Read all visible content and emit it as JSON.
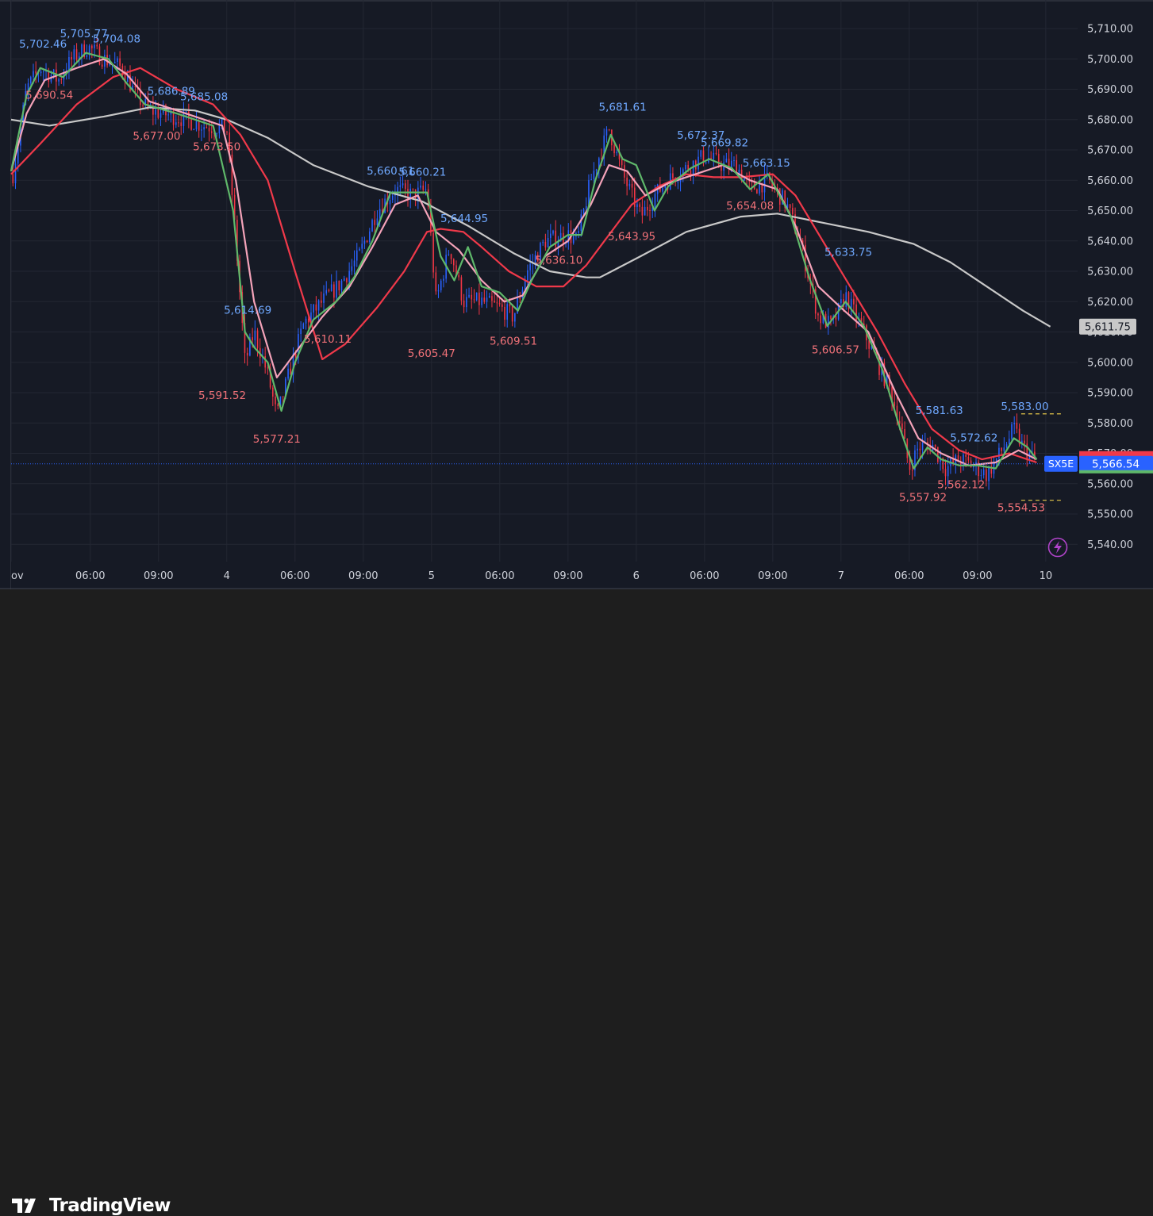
{
  "brand": {
    "name": "TradingView",
    "logo_icon": "tradingview-logo-icon"
  },
  "colors": {
    "background": "#161a25",
    "grid": "#232733",
    "up_candle": "#2962ff",
    "down_candle": "#f23645",
    "ma_fast": "#5fb86a",
    "ma_pink": "#f4a3b9",
    "ma_red": "#f0394a",
    "ma_slow": "#c8c8c8",
    "high_label": "#6fa8ff",
    "low_label": "#f07178",
    "axis_text": "#d1d4dc"
  },
  "chart_data": {
    "type": "line",
    "symbol": "SX5E",
    "last_price": 5566.54,
    "last_price_label": "5,566.54",
    "symbol_tag": "SX5E",
    "ma_value_label": "5,611.75",
    "ma_value": 5611.75,
    "ylim": [
      5533,
      5716
    ],
    "y_ticks": [
      5540,
      5550,
      5560,
      5570,
      5580,
      5590,
      5600,
      5610,
      5620,
      5630,
      5640,
      5650,
      5660,
      5670,
      5680,
      5690,
      5700,
      5710
    ],
    "y_tick_labels": [
      "5,540.00",
      "5,550.00",
      "5,560.00",
      "5,570.00",
      "5,580.00",
      "5,590.00",
      "5,600.00",
      "5,610.00",
      "5,620.00",
      "5,630.00",
      "5,640.00",
      "5,650.00",
      "5,660.00",
      "5,670.00",
      "5,680.00",
      "5,690.00",
      "5,700.00",
      "5,710.00"
    ],
    "x_range": [
      -1.62,
      10.1
    ],
    "x_ticks": [
      {
        "x": -1.62,
        "label": "ov"
      },
      {
        "x": -0.75,
        "label": "06:00"
      },
      {
        "x": 0.0,
        "label": "09:00"
      },
      {
        "x": 0.75,
        "label": "4"
      },
      {
        "x": 1.5,
        "label": "06:00"
      },
      {
        "x": 2.25,
        "label": "09:00"
      },
      {
        "x": 3.0,
        "label": "5"
      },
      {
        "x": 3.75,
        "label": "06:00"
      },
      {
        "x": 4.5,
        "label": "09:00"
      },
      {
        "x": 5.25,
        "label": "6"
      },
      {
        "x": 6.0,
        "label": "06:00"
      },
      {
        "x": 6.75,
        "label": "09:00"
      },
      {
        "x": 7.5,
        "label": "7"
      },
      {
        "x": 8.25,
        "label": "06:00"
      },
      {
        "x": 9.0,
        "label": "09:00"
      },
      {
        "x": 9.75,
        "label": "10"
      }
    ],
    "price_anchors": [
      [
        -1.6,
        5662
      ],
      [
        -1.45,
        5690
      ],
      [
        -1.3,
        5697
      ],
      [
        -1.1,
        5693
      ],
      [
        -0.95,
        5700
      ],
      [
        -0.78,
        5704
      ],
      [
        -0.6,
        5700
      ],
      [
        -0.4,
        5697
      ],
      [
        -0.25,
        5688
      ],
      [
        -0.1,
        5683
      ],
      [
        0.05,
        5682
      ],
      [
        0.3,
        5680
      ],
      [
        0.5,
        5678
      ],
      [
        0.75,
        5677
      ],
      [
        0.85,
        5640
      ],
      [
        0.95,
        5600
      ],
      [
        1.05,
        5610
      ],
      [
        1.2,
        5596
      ],
      [
        1.3,
        5582
      ],
      [
        1.45,
        5598
      ],
      [
        1.6,
        5613
      ],
      [
        1.8,
        5620
      ],
      [
        2.0,
        5626
      ],
      [
        2.2,
        5635
      ],
      [
        2.4,
        5650
      ],
      [
        2.6,
        5657
      ],
      [
        2.8,
        5655
      ],
      [
        2.95,
        5657
      ],
      [
        3.05,
        5620
      ],
      [
        3.2,
        5638
      ],
      [
        3.35,
        5620
      ],
      [
        3.55,
        5620
      ],
      [
        3.75,
        5618
      ],
      [
        3.9,
        5615
      ],
      [
        4.05,
        5630
      ],
      [
        4.25,
        5640
      ],
      [
        4.5,
        5642
      ],
      [
        4.6,
        5640
      ],
      [
        4.75,
        5660
      ],
      [
        4.95,
        5677
      ],
      [
        5.1,
        5662
      ],
      [
        5.3,
        5648
      ],
      [
        5.45,
        5655
      ],
      [
        5.6,
        5660
      ],
      [
        5.8,
        5664
      ],
      [
        6.0,
        5668
      ],
      [
        6.2,
        5665
      ],
      [
        6.35,
        5665
      ],
      [
        6.5,
        5657
      ],
      [
        6.7,
        5660
      ],
      [
        6.9,
        5652
      ],
      [
        7.05,
        5640
      ],
      [
        7.25,
        5615
      ],
      [
        7.4,
        5612
      ],
      [
        7.55,
        5622
      ],
      [
        7.75,
        5610
      ],
      [
        7.9,
        5600
      ],
      [
        8.05,
        5590
      ],
      [
        8.15,
        5580
      ],
      [
        8.25,
        5565
      ],
      [
        8.35,
        5572
      ],
      [
        8.5,
        5573
      ],
      [
        8.65,
        5565
      ],
      [
        8.8,
        5568
      ],
      [
        8.95,
        5566
      ],
      [
        9.1,
        5563
      ],
      [
        9.25,
        5570
      ],
      [
        9.4,
        5578
      ],
      [
        9.5,
        5572
      ],
      [
        9.65,
        5567
      ]
    ],
    "series": [
      {
        "color": "#c8c8c8",
        "values": [
          [
            -1.62,
            5680
          ],
          [
            -1.2,
            5678
          ],
          [
            -0.6,
            5681
          ],
          [
            -0.1,
            5684
          ],
          [
            0.4,
            5683
          ],
          [
            0.75,
            5680
          ],
          [
            1.2,
            5674
          ],
          [
            1.7,
            5665
          ],
          [
            2.3,
            5658
          ],
          [
            2.9,
            5653
          ],
          [
            3.4,
            5645
          ],
          [
            3.9,
            5636
          ],
          [
            4.3,
            5630
          ],
          [
            4.7,
            5628
          ],
          [
            4.85,
            5628
          ],
          [
            5.3,
            5635
          ],
          [
            5.8,
            5643
          ],
          [
            6.4,
            5648
          ],
          [
            6.8,
            5649
          ],
          [
            7.3,
            5646
          ],
          [
            7.8,
            5643
          ],
          [
            8.3,
            5639
          ],
          [
            8.7,
            5633
          ],
          [
            9.1,
            5625
          ],
          [
            9.5,
            5617
          ],
          [
            9.8,
            5611.75
          ]
        ]
      },
      {
        "color": "#f0394a",
        "values": [
          [
            -1.62,
            5662
          ],
          [
            -1.3,
            5672
          ],
          [
            -0.9,
            5685
          ],
          [
            -0.5,
            5694
          ],
          [
            -0.2,
            5697
          ],
          [
            0.2,
            5690
          ],
          [
            0.6,
            5685
          ],
          [
            0.9,
            5675
          ],
          [
            1.2,
            5660
          ],
          [
            1.5,
            5630
          ],
          [
            1.8,
            5601
          ],
          [
            2.05,
            5606
          ],
          [
            2.4,
            5618
          ],
          [
            2.7,
            5630
          ],
          [
            2.95,
            5643
          ],
          [
            3.1,
            5644
          ],
          [
            3.35,
            5643
          ],
          [
            3.55,
            5638
          ],
          [
            3.85,
            5630
          ],
          [
            4.15,
            5625
          ],
          [
            4.45,
            5625
          ],
          [
            4.7,
            5632
          ],
          [
            4.95,
            5642
          ],
          [
            5.2,
            5652
          ],
          [
            5.5,
            5658
          ],
          [
            5.8,
            5662
          ],
          [
            6.1,
            5661
          ],
          [
            6.4,
            5661
          ],
          [
            6.75,
            5662
          ],
          [
            7.0,
            5655
          ],
          [
            7.3,
            5640
          ],
          [
            7.6,
            5625
          ],
          [
            7.9,
            5610
          ],
          [
            8.2,
            5593
          ],
          [
            8.5,
            5578
          ],
          [
            8.8,
            5571
          ],
          [
            9.05,
            5568
          ],
          [
            9.35,
            5570
          ],
          [
            9.65,
            5567
          ]
        ]
      },
      {
        "color": "#f4a3b9",
        "values": [
          [
            -1.62,
            5663
          ],
          [
            -1.45,
            5682
          ],
          [
            -1.25,
            5693
          ],
          [
            -0.9,
            5697
          ],
          [
            -0.6,
            5700
          ],
          [
            -0.35,
            5695
          ],
          [
            -0.1,
            5686
          ],
          [
            0.3,
            5682
          ],
          [
            0.7,
            5678
          ],
          [
            0.85,
            5660
          ],
          [
            1.05,
            5620
          ],
          [
            1.3,
            5595
          ],
          [
            1.55,
            5605
          ],
          [
            1.8,
            5615
          ],
          [
            2.1,
            5625
          ],
          [
            2.35,
            5638
          ],
          [
            2.6,
            5652
          ],
          [
            2.85,
            5655
          ],
          [
            3.05,
            5643
          ],
          [
            3.3,
            5637
          ],
          [
            3.55,
            5627
          ],
          [
            3.8,
            5620
          ],
          [
            4.0,
            5622
          ],
          [
            4.25,
            5635
          ],
          [
            4.5,
            5640
          ],
          [
            4.75,
            5652
          ],
          [
            4.95,
            5665
          ],
          [
            5.15,
            5663
          ],
          [
            5.35,
            5655
          ],
          [
            5.6,
            5659
          ],
          [
            5.9,
            5662
          ],
          [
            6.2,
            5665
          ],
          [
            6.5,
            5660
          ],
          [
            6.8,
            5657
          ],
          [
            7.0,
            5645
          ],
          [
            7.25,
            5625
          ],
          [
            7.5,
            5618
          ],
          [
            7.8,
            5610
          ],
          [
            8.1,
            5590
          ],
          [
            8.35,
            5575
          ],
          [
            8.6,
            5570
          ],
          [
            8.9,
            5566
          ],
          [
            9.2,
            5567
          ],
          [
            9.45,
            5571
          ],
          [
            9.65,
            5568
          ]
        ]
      },
      {
        "color": "#5fb86a",
        "values": [
          [
            -1.62,
            5663
          ],
          [
            -1.45,
            5688
          ],
          [
            -1.3,
            5697
          ],
          [
            -1.05,
            5694
          ],
          [
            -0.8,
            5702
          ],
          [
            -0.55,
            5700
          ],
          [
            -0.35,
            5692
          ],
          [
            -0.15,
            5685
          ],
          [
            0.2,
            5682
          ],
          [
            0.6,
            5678
          ],
          [
            0.82,
            5650
          ],
          [
            0.95,
            5610
          ],
          [
            1.05,
            5605
          ],
          [
            1.2,
            5600
          ],
          [
            1.35,
            5584
          ],
          [
            1.5,
            5600
          ],
          [
            1.7,
            5614
          ],
          [
            1.95,
            5620
          ],
          [
            2.15,
            5628
          ],
          [
            2.35,
            5640
          ],
          [
            2.55,
            5656
          ],
          [
            2.75,
            5656
          ],
          [
            2.95,
            5656
          ],
          [
            3.1,
            5635
          ],
          [
            3.25,
            5627
          ],
          [
            3.4,
            5638
          ],
          [
            3.55,
            5625
          ],
          [
            3.75,
            5623
          ],
          [
            3.95,
            5617
          ],
          [
            4.1,
            5627
          ],
          [
            4.3,
            5638
          ],
          [
            4.5,
            5642
          ],
          [
            4.65,
            5642
          ],
          [
            4.8,
            5660
          ],
          [
            4.97,
            5675
          ],
          [
            5.1,
            5667
          ],
          [
            5.25,
            5665
          ],
          [
            5.45,
            5650
          ],
          [
            5.6,
            5658
          ],
          [
            5.85,
            5664
          ],
          [
            6.05,
            5667
          ],
          [
            6.3,
            5664
          ],
          [
            6.5,
            5657
          ],
          [
            6.7,
            5662
          ],
          [
            6.95,
            5648
          ],
          [
            7.15,
            5628
          ],
          [
            7.35,
            5612
          ],
          [
            7.55,
            5620
          ],
          [
            7.75,
            5612
          ],
          [
            7.95,
            5598
          ],
          [
            8.15,
            5578
          ],
          [
            8.3,
            5565
          ],
          [
            8.45,
            5572
          ],
          [
            8.6,
            5568
          ],
          [
            8.8,
            5566
          ],
          [
            9.0,
            5566
          ],
          [
            9.2,
            5565
          ],
          [
            9.4,
            5575
          ],
          [
            9.55,
            5572
          ],
          [
            9.65,
            5568
          ]
        ]
      }
    ],
    "annotations": [
      {
        "x": -1.27,
        "y": 5702.46,
        "label": "5,702.46",
        "kind": "high"
      },
      {
        "x": -0.82,
        "y": 5705.77,
        "label": "5,705.77",
        "kind": "high"
      },
      {
        "x": -0.46,
        "y": 5704.08,
        "label": "5,704.08",
        "kind": "high"
      },
      {
        "x": -1.2,
        "y": 5690.54,
        "label": "5,690.54",
        "kind": "low"
      },
      {
        "x": 0.14,
        "y": 5686.89,
        "label": "5,686.89",
        "kind": "high"
      },
      {
        "x": 0.5,
        "y": 5685.08,
        "label": "5,685.08",
        "kind": "high"
      },
      {
        "x": -0.02,
        "y": 5677.0,
        "label": "5,677.00",
        "kind": "low"
      },
      {
        "x": 0.64,
        "y": 5673.5,
        "label": "5,673.50",
        "kind": "low"
      },
      {
        "x": 0.98,
        "y": 5614.69,
        "label": "5,614.69",
        "kind": "high"
      },
      {
        "x": 0.7,
        "y": 5591.52,
        "label": "5,591.52",
        "kind": "low"
      },
      {
        "x": 1.3,
        "y": 5577.21,
        "label": "5,577.21",
        "kind": "low"
      },
      {
        "x": 1.86,
        "y": 5610.11,
        "label": "5,610.11",
        "kind": "low"
      },
      {
        "x": 2.55,
        "y": 5660.61,
        "label": "5,660.61",
        "kind": "high"
      },
      {
        "x": 2.9,
        "y": 5660.21,
        "label": "5,660.21",
        "kind": "high"
      },
      {
        "x": 3.36,
        "y": 5644.95,
        "label": "5,644.95",
        "kind": "high"
      },
      {
        "x": 3.0,
        "y": 5605.47,
        "label": "5,605.47",
        "kind": "low"
      },
      {
        "x": 3.9,
        "y": 5609.51,
        "label": "5,609.51",
        "kind": "low"
      },
      {
        "x": 4.4,
        "y": 5636.1,
        "label": "5,636.10",
        "kind": "low"
      },
      {
        "x": 5.1,
        "y": 5681.61,
        "label": "5,681.61",
        "kind": "high"
      },
      {
        "x": 5.2,
        "y": 5643.95,
        "label": "5,643.95",
        "kind": "low"
      },
      {
        "x": 5.96,
        "y": 5672.37,
        "label": "5,672.37",
        "kind": "high"
      },
      {
        "x": 6.22,
        "y": 5669.82,
        "label": "5,669.82",
        "kind": "high"
      },
      {
        "x": 6.68,
        "y": 5663.15,
        "label": "5,663.15",
        "kind": "high"
      },
      {
        "x": 6.5,
        "y": 5654.08,
        "label": "5,654.08",
        "kind": "low"
      },
      {
        "x": 7.58,
        "y": 5633.75,
        "label": "5,633.75",
        "kind": "high"
      },
      {
        "x": 7.44,
        "y": 5606.57,
        "label": "5,606.57",
        "kind": "low"
      },
      {
        "x": 8.58,
        "y": 5581.63,
        "label": "5,581.63",
        "kind": "high"
      },
      {
        "x": 8.96,
        "y": 5572.62,
        "label": "5,572.62",
        "kind": "high"
      },
      {
        "x": 8.4,
        "y": 5557.92,
        "label": "5,557.92",
        "kind": "low"
      },
      {
        "x": 8.82,
        "y": 5562.12,
        "label": "5,562.12",
        "kind": "low"
      },
      {
        "x": 9.52,
        "y": 5583.0,
        "label": "5,583.00",
        "kind": "high"
      },
      {
        "x": 9.48,
        "y": 5554.53,
        "label": "5,554.53",
        "kind": "low"
      }
    ],
    "range_markers": [
      5583.0,
      5554.53
    ],
    "grid": true,
    "legend": "none",
    "alert_icon": "lightning-icon"
  }
}
